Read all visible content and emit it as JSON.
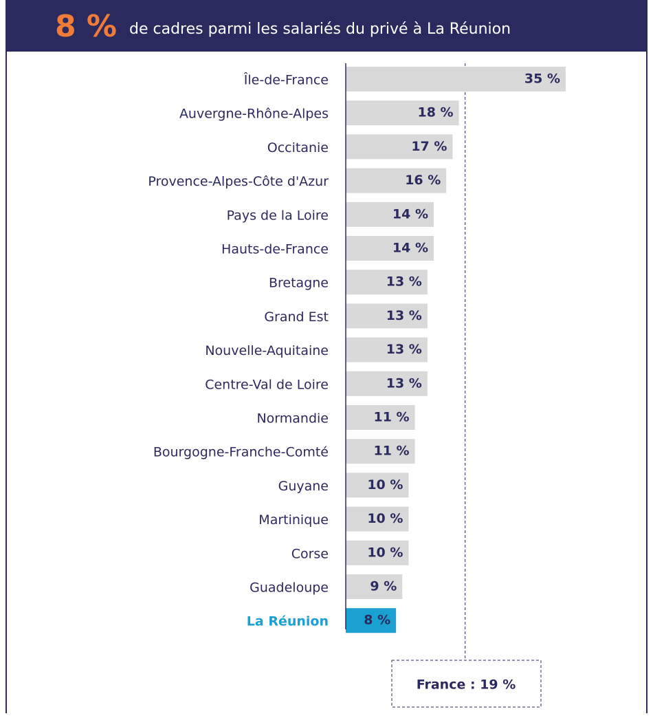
{
  "chart_data": {
    "type": "barh",
    "title_highlight": "8 %",
    "title": "de cadres parmi les salariés du privé à La Réunion",
    "categories": [
      "Île-de-France",
      "Auvergne-Rhône-Alpes",
      "Occitanie",
      "Provence-Alpes-Côte d'Azur",
      "Pays de la Loire",
      "Hauts-de-France",
      "Bretagne",
      "Grand Est",
      "Nouvelle-Aquitaine",
      "Centre-Val de Loire",
      "Normandie",
      "Bourgogne-Franche-Comté",
      "Guyane",
      "Martinique",
      "Corse",
      "Guadeloupe",
      "La Réunion"
    ],
    "values": [
      35,
      18,
      17,
      16,
      14,
      14,
      13,
      13,
      13,
      13,
      11,
      11,
      10,
      10,
      10,
      9,
      8
    ],
    "value_labels": [
      "35 %",
      "18 %",
      "17 %",
      "16 %",
      "14 %",
      "14 %",
      "13 %",
      "13 %",
      "13 %",
      "13 %",
      "11 %",
      "11 %",
      "10 %",
      "10 %",
      "10 %",
      "9 %",
      "8 %"
    ],
    "color": "#d9d9d9",
    "highlight": "La Réunion",
    "highlight_color": "#1ba0d2",
    "reference": {
      "value": 19,
      "label": "France : 19 %"
    }
  }
}
